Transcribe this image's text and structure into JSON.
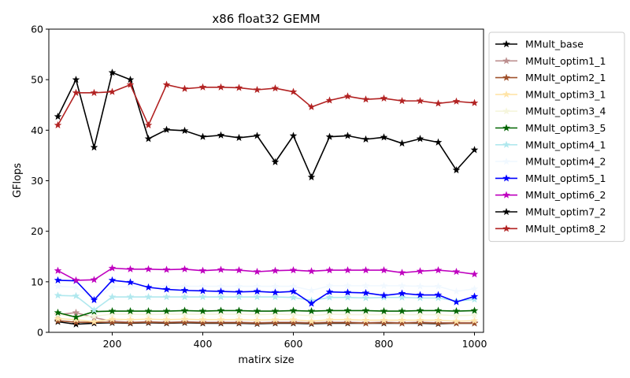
{
  "chart_data": {
    "type": "line",
    "title": "x86 float32 GEMM",
    "xlabel": "matirx size",
    "ylabel": "GFlops",
    "xlim": [
      60,
      1020
    ],
    "ylim": [
      0,
      60
    ],
    "xticks": [
      200,
      400,
      600,
      800,
      1000
    ],
    "yticks": [
      0,
      10,
      20,
      30,
      40,
      50,
      60
    ],
    "grid": false,
    "legend": "right-outside",
    "marker": "star",
    "x": [
      80,
      120,
      160,
      200,
      240,
      280,
      320,
      360,
      400,
      440,
      480,
      520,
      560,
      600,
      640,
      680,
      720,
      760,
      800,
      840,
      880,
      920,
      960,
      1000
    ],
    "series": [
      {
        "name": "MMult_base",
        "color": "#000000",
        "values": [
          2.1,
          1.6,
          1.8,
          1.9,
          1.8,
          1.9,
          1.8,
          1.9,
          1.8,
          1.8,
          1.8,
          1.7,
          1.8,
          1.8,
          1.7,
          1.8,
          1.8,
          1.8,
          1.8,
          1.8,
          1.8,
          1.7,
          1.8,
          1.8
        ]
      },
      {
        "name": "MMult_optim1_1",
        "color": "#bc8f8f",
        "values": [
          3.5,
          3.9,
          2.9,
          2.2,
          2.0,
          2.1,
          2.0,
          2.1,
          2.0,
          2.0,
          2.0,
          1.9,
          2.0,
          2.0,
          1.9,
          2.0,
          2.0,
          1.9,
          2.0,
          1.9,
          2.0,
          1.9,
          1.9,
          1.9
        ]
      },
      {
        "name": "MMult_optim2_1",
        "color": "#a0522d",
        "values": [
          2.3,
          2.0,
          2.0,
          2.0,
          1.9,
          2.0,
          1.9,
          2.0,
          1.9,
          1.9,
          1.9,
          1.8,
          1.9,
          1.9,
          1.8,
          1.9,
          1.9,
          1.8,
          1.9,
          1.8,
          1.9,
          1.8,
          1.8,
          1.8
        ]
      },
      {
        "name": "MMult_optim3_1",
        "color": "#ffe4a8",
        "values": [
          2.7,
          2.5,
          2.1,
          2.6,
          2.5,
          2.6,
          2.5,
          2.6,
          2.5,
          2.5,
          2.5,
          2.4,
          2.5,
          2.5,
          2.2,
          2.5,
          2.5,
          2.4,
          2.4,
          2.4,
          2.4,
          2.4,
          2.2,
          2.3
        ]
      },
      {
        "name": "MMult_optim3_4",
        "color": "#f5f5dc",
        "values": [
          3.6,
          3.0,
          3.2,
          3.6,
          3.6,
          3.5,
          3.6,
          3.6,
          3.6,
          3.6,
          3.6,
          3.5,
          3.6,
          3.5,
          3.3,
          3.6,
          3.5,
          3.5,
          3.5,
          3.5,
          3.5,
          3.5,
          3.3,
          3.4
        ]
      },
      {
        "name": "MMult_optim3_5",
        "color": "#006400",
        "values": [
          3.9,
          3.0,
          4.1,
          4.2,
          4.2,
          4.2,
          4.2,
          4.3,
          4.2,
          4.3,
          4.3,
          4.2,
          4.2,
          4.3,
          4.2,
          4.3,
          4.3,
          4.3,
          4.2,
          4.2,
          4.3,
          4.3,
          4.2,
          4.3
        ]
      },
      {
        "name": "MMult_optim4_1",
        "color": "#b0e8ee",
        "values": [
          7.3,
          7.2,
          4.4,
          7.0,
          7.0,
          7.0,
          7.0,
          7.0,
          7.0,
          7.0,
          7.0,
          7.0,
          7.0,
          6.9,
          6.3,
          6.9,
          6.9,
          6.8,
          6.9,
          6.9,
          6.8,
          6.8,
          6.2,
          6.5
        ]
      },
      {
        "name": "MMult_optim4_2",
        "color": "#f0f8ff",
        "values": [
          9.1,
          8.9,
          6.6,
          9.0,
          9.0,
          9.1,
          9.1,
          9.1,
          9.1,
          9.1,
          9.1,
          9.1,
          9.1,
          9.1,
          8.3,
          9.2,
          9.2,
          9.2,
          9.2,
          9.2,
          9.1,
          9.1,
          8.1,
          8.6
        ]
      },
      {
        "name": "MMult_optim5_1",
        "color": "#0000ff",
        "values": [
          10.3,
          10.2,
          6.4,
          10.3,
          9.9,
          8.9,
          8.5,
          8.3,
          8.2,
          8.1,
          8.0,
          8.1,
          7.9,
          8.1,
          5.7,
          8.0,
          7.9,
          7.8,
          7.3,
          7.7,
          7.4,
          7.4,
          6.0,
          7.1
        ]
      },
      {
        "name": "MMult_optim6_2",
        "color": "#bf00bf",
        "values": [
          12.2,
          10.3,
          10.4,
          12.7,
          12.5,
          12.5,
          12.4,
          12.5,
          12.2,
          12.4,
          12.3,
          12.0,
          12.2,
          12.3,
          12.1,
          12.3,
          12.3,
          12.3,
          12.3,
          11.8,
          12.1,
          12.3,
          12.0,
          11.5
        ]
      },
      {
        "name": "MMult_optim7_2",
        "color": "#000000",
        "values": [
          42.7,
          50.0,
          36.6,
          51.4,
          50.0,
          38.3,
          40.1,
          39.9,
          38.7,
          39.0,
          38.5,
          38.9,
          33.7,
          38.9,
          30.7,
          38.7,
          38.9,
          38.2,
          38.6,
          37.4,
          38.3,
          37.6,
          32.1,
          36.1
        ]
      },
      {
        "name": "MMult_optim8_2",
        "color": "#b22222",
        "values": [
          41.0,
          47.4,
          47.4,
          47.6,
          49.0,
          41.0,
          49.0,
          48.2,
          48.5,
          48.5,
          48.4,
          48.0,
          48.3,
          47.6,
          44.6,
          45.9,
          46.7,
          46.1,
          46.3,
          45.8,
          45.8,
          45.3,
          45.7,
          45.4
        ]
      }
    ]
  }
}
